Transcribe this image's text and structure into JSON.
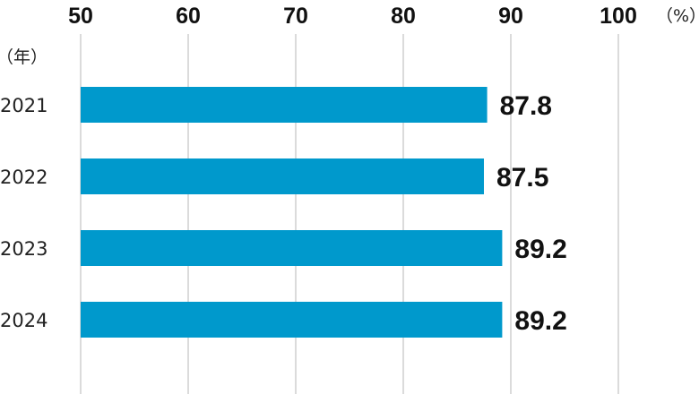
{
  "chart_data": {
    "type": "bar",
    "orientation": "horizontal",
    "categories": [
      "2021",
      "2022",
      "2023",
      "2024"
    ],
    "values": [
      87.8,
      87.5,
      89.2,
      89.2
    ],
    "value_labels": [
      "87.8",
      "87.5",
      "89.2",
      "89.2"
    ],
    "x_ticks": [
      "50",
      "60",
      "70",
      "80",
      "90",
      "100"
    ],
    "x_tick_values": [
      50,
      60,
      70,
      80,
      90,
      100
    ],
    "x_unit": "（%）",
    "y_unit": "（年）",
    "xlim": [
      50,
      100
    ],
    "grid": true,
    "axis_position": "top",
    "bar_color": "#0099cc"
  }
}
